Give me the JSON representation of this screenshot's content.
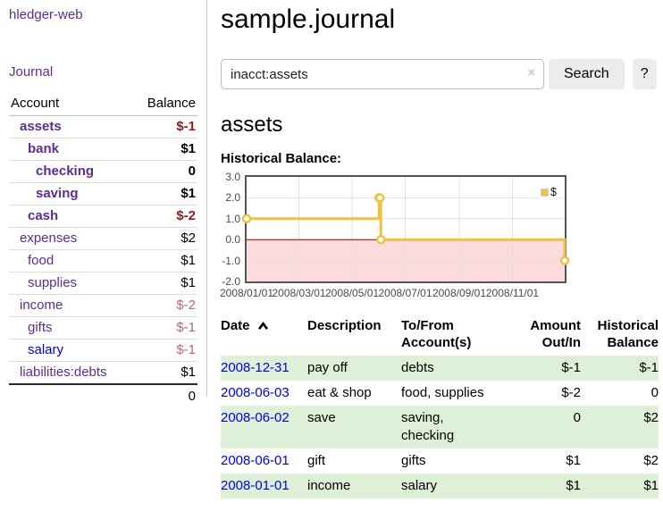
{
  "app": {
    "brand": "hledger-web",
    "nav_journal": "Journal"
  },
  "sidebar_accounts": {
    "col_account": "Account",
    "col_balance": "Balance",
    "rows": [
      {
        "name": "assets",
        "balance": "$-1",
        "level": 1,
        "bold": true,
        "balance_style": "neg",
        "link_style": "purple"
      },
      {
        "name": "bank",
        "balance": "$1",
        "level": 2,
        "bold": true,
        "balance_style": "pos",
        "link_style": "purple"
      },
      {
        "name": "checking",
        "balance": "0",
        "level": 3,
        "bold": true,
        "balance_style": "pos",
        "link_style": "purple"
      },
      {
        "name": "saving",
        "balance": "$1",
        "level": 3,
        "bold": true,
        "balance_style": "pos",
        "link_style": "purple"
      },
      {
        "name": "cash",
        "balance": "$-2",
        "level": 2,
        "bold": true,
        "balance_style": "neg",
        "link_style": "purple"
      },
      {
        "name": "expenses",
        "balance": "$2",
        "level": 1,
        "bold": false,
        "balance_style": "pos",
        "link_style": "purple"
      },
      {
        "name": "food",
        "balance": "$1",
        "level": 2,
        "bold": false,
        "balance_style": "pos",
        "link_style": "purple"
      },
      {
        "name": "supplies",
        "balance": "$1",
        "level": 2,
        "bold": false,
        "balance_style": "pos",
        "link_style": "purple"
      },
      {
        "name": "income",
        "balance": "$-2",
        "level": 1,
        "bold": false,
        "balance_style": "neg-muted",
        "link_style": "purple"
      },
      {
        "name": "gifts",
        "balance": "$-1",
        "level": 2,
        "bold": false,
        "balance_style": "neg-muted",
        "link_style": "purple"
      },
      {
        "name": "salary",
        "balance": "$-1",
        "level": 2,
        "bold": false,
        "balance_style": "neg-muted",
        "link_style": "blue"
      },
      {
        "name": "liabilities:debts",
        "balance": "$1",
        "level": 1,
        "bold": false,
        "balance_style": "pos",
        "link_style": "purple"
      }
    ],
    "total": "0"
  },
  "main": {
    "title": "sample.journal",
    "account_title": "assets",
    "chart_label": "Historical Balance:"
  },
  "search": {
    "value": "inacct:assets",
    "clear_icon": "×",
    "submit_label": "Search",
    "help_label": "?"
  },
  "chart_data": {
    "type": "line",
    "title": "Historical Balance",
    "step": true,
    "series": [
      {
        "name": "$",
        "points": [
          [
            "2008-01-01",
            1
          ],
          [
            "2008-06-01",
            2
          ],
          [
            "2008-06-02",
            2
          ],
          [
            "2008-06-03",
            0
          ],
          [
            "2008-12-31",
            -1
          ]
        ]
      }
    ],
    "x_range": [
      "2008-01-01",
      "2008-12-31"
    ],
    "x_ticks": [
      "2008/01/01",
      "2008/03/01",
      "2008/05/01",
      "2008/07/01",
      "2008/09/01",
      "2008/11/01"
    ],
    "y_ticks": [
      "3.0",
      "2.0",
      "1.0",
      "0.0",
      "-1.0",
      "-2.0"
    ],
    "y_range": [
      -2,
      3
    ],
    "grid": true,
    "legend": {
      "label": "$",
      "position": "top-right"
    },
    "negative_region_shaded": true,
    "line_color": "#edc240",
    "marker_fill": "#ffffff",
    "negative_region_color": "#fbdbdb",
    "zero_line_color": "#8b0000",
    "gridline_color": "#e0e0e0"
  },
  "register": {
    "headers": {
      "date": "Date",
      "sort": "ascending",
      "description": "Description",
      "accounts": "To/From Account(s)",
      "amount": "Amount Out/In",
      "balance": "Historical Balance"
    },
    "rows": [
      {
        "date": "2008-12-31",
        "description": "pay off",
        "accounts": "debts",
        "amount": "$-1",
        "balance": "$-1",
        "amount_neg": true,
        "balance_neg": true,
        "shaded": true
      },
      {
        "date": "2008-06-03",
        "description": "eat & shop",
        "accounts": "food, supplies",
        "amount": "$-2",
        "balance": "0",
        "amount_neg": true,
        "balance_neg": false,
        "shaded": false
      },
      {
        "date": "2008-06-02",
        "description": "save",
        "accounts": "saving,\nchecking",
        "amount": "0",
        "balance": "$2",
        "amount_neg": false,
        "balance_neg": false,
        "shaded": true
      },
      {
        "date": "2008-06-01",
        "description": "gift",
        "accounts": "gifts",
        "amount": "$1",
        "balance": "$2",
        "amount_neg": false,
        "balance_neg": false,
        "shaded": false
      },
      {
        "date": "2008-01-01",
        "description": "income",
        "accounts": "salary",
        "amount": "$1",
        "balance": "$1",
        "amount_neg": false,
        "balance_neg": false,
        "shaded": true
      }
    ]
  },
  "colors": {
    "link_purple": "#5c2d91",
    "link_blue": "#0000dd",
    "negative_red": "#8e1b1b",
    "negative_muted": "#b36b6b",
    "row_shade_green": "#dff0d8",
    "chart_line_yellow": "#edc240",
    "chart_negative_pink": "#fbdbdb",
    "chart_zero_line": "#8b0000",
    "button_gray": "#ececec"
  }
}
